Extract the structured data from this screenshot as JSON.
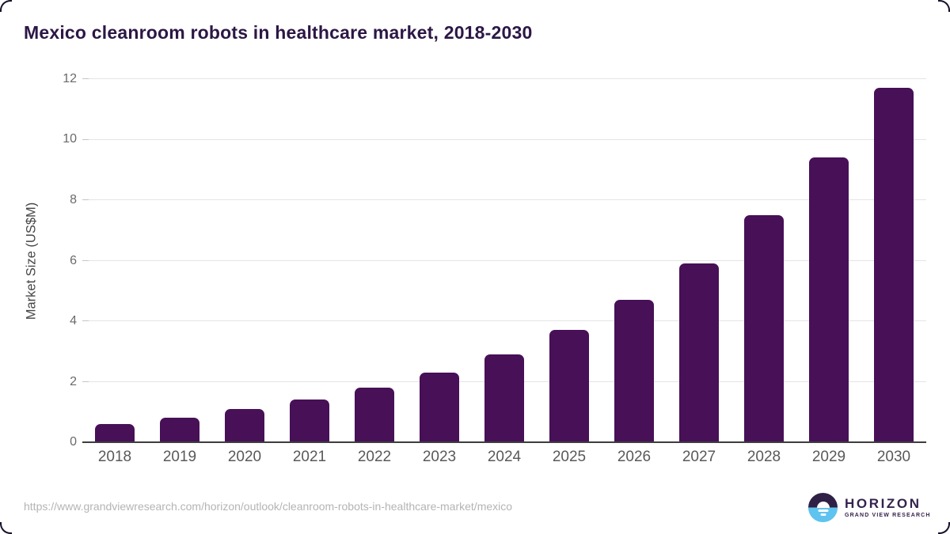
{
  "page": {
    "title": "Mexico cleanroom robots in healthcare market, 2018-2030",
    "source_url": "https://www.grandviewresearch.com/horizon/outlook/cleanroom-robots-in-healthcare-market/mexico"
  },
  "logo": {
    "name": "HORIZON",
    "subtitle": "GRAND VIEW RESEARCH",
    "icon": "sun-over-horizon-icon"
  },
  "colors": {
    "bar": "#471057",
    "title": "#2c1745",
    "gridline": "#e4e4e4",
    "tick_mark": "#c6c6c6",
    "axis_line": "#3d3d3d",
    "tick_label": "#6a6a6a",
    "x_label": "#595959",
    "url": "#b4b4b4",
    "logo_purple": "#2f2045",
    "logo_blue": "#5fc3ef",
    "logo_text": "#34224d"
  },
  "chart_data": {
    "type": "bar",
    "title": "Mexico cleanroom robots in healthcare market, 2018-2030",
    "categories": [
      "2018",
      "2019",
      "2020",
      "2021",
      "2022",
      "2023",
      "2024",
      "2025",
      "2026",
      "2027",
      "2028",
      "2029",
      "2030"
    ],
    "values": [
      0.6,
      0.8,
      1.1,
      1.4,
      1.8,
      2.3,
      2.9,
      3.7,
      4.7,
      5.9,
      7.5,
      9.4,
      11.7
    ],
    "xlabel": "",
    "ylabel": "Market Size (US$M)",
    "ylim": [
      0,
      12
    ],
    "yticks": [
      0,
      2,
      4,
      6,
      8,
      10,
      12
    ],
    "grid": true,
    "legend": false,
    "bar_color": "#471057"
  }
}
